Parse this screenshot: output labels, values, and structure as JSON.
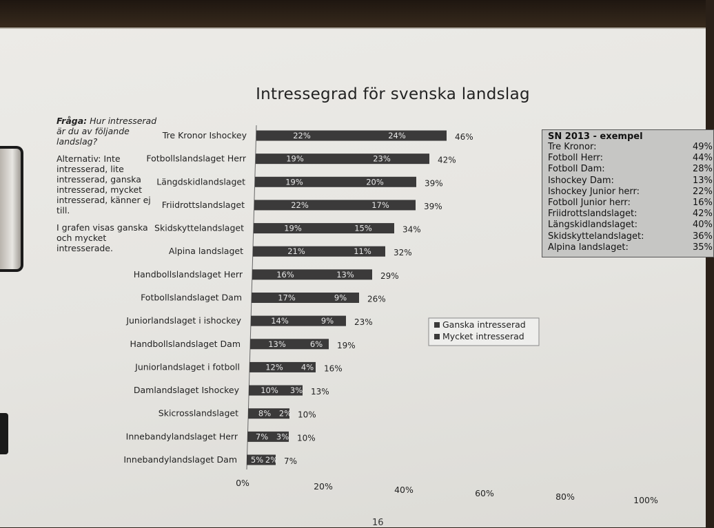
{
  "chart_data": {
    "type": "bar",
    "orientation": "horizontal",
    "stacked": true,
    "title": "Intressegrad för svenska landslag",
    "categories": [
      "Tre Kronor Ishockey",
      "Fotbollslandslaget Herr",
      "Längdskidlandslaget",
      "Friidrottslandslaget",
      "Skidskyttelandslaget",
      "Alpina landslaget",
      "Handbollslandslaget Herr",
      "Fotbollslandslaget Dam",
      "Juniorlandslaget i ishockey",
      "Handbollslandslaget Dam",
      "Juniorlandslaget i fotboll",
      "Damlandslaget Ishockey",
      "Skicrosslandslaget",
      "Innebandylandslaget Herr",
      "Innebandylandslaget Dam"
    ],
    "series": [
      {
        "name": "Ganska intresserad",
        "values": [
          22,
          19,
          19,
          22,
          19,
          21,
          16,
          17,
          14,
          13,
          12,
          10,
          8,
          7,
          5
        ]
      },
      {
        "name": "Mycket intresserad",
        "values": [
          24,
          23,
          20,
          17,
          15,
          11,
          13,
          9,
          9,
          6,
          4,
          3,
          2,
          3,
          2
        ]
      }
    ],
    "segment_labels": [
      [
        "22%",
        "24%"
      ],
      [
        "19%",
        "23%"
      ],
      [
        "19%",
        "20%"
      ],
      [
        "22%",
        "17%"
      ],
      [
        "19%",
        "15%"
      ],
      [
        "21%",
        "11%"
      ],
      [
        "16%",
        "13%"
      ],
      [
        "17%",
        "9%"
      ],
      [
        "14%",
        "9%"
      ],
      [
        "13%",
        "6%"
      ],
      [
        "12%",
        "4%"
      ],
      [
        "10%",
        "3%"
      ],
      [
        "8%",
        "2%"
      ],
      [
        "7%",
        "3%"
      ],
      [
        "5%",
        "2%"
      ]
    ],
    "totals": [
      "46%",
      "42%",
      "39%",
      "39%",
      "34%",
      "32%",
      "29%",
      "26%",
      "23%",
      "19%",
      "16%",
      "13%",
      "10%",
      "10%",
      "7%"
    ],
    "x_ticks": [
      "0%",
      "20%",
      "40%",
      "60%",
      "80%",
      "100%"
    ],
    "xlim": [
      0,
      100
    ],
    "legend_position": "right",
    "bar_color": "#3a3a3a"
  },
  "question": {
    "label": "Fråga:",
    "text": " Hur intresserad är du av följande landslag?",
    "alternatives": "Alternativ: Inte intresserad, lite intresserad, ganska intresserad, mycket intresserad, känner ej till.",
    "note": "I grafen visas ganska och mycket intresserade."
  },
  "sn_box": {
    "title": "SN 2013 - exempel",
    "rows": [
      {
        "label": "Tre Kronor:",
        "value": "49%"
      },
      {
        "label": "Fotboll Herr:",
        "value": "44%"
      },
      {
        "label": "Fotboll Dam:",
        "value": "28%"
      },
      {
        "label": "Ishockey Dam:",
        "value": "13%"
      },
      {
        "label": "Ishockey Junior herr:",
        "value": "22%"
      },
      {
        "label": "Fotboll Junior herr:",
        "value": "16%"
      },
      {
        "label": "Friidrottslandslaget:",
        "value": "42%"
      },
      {
        "label": "Längskidlandslaget:",
        "value": "40%"
      },
      {
        "label": "Skidskyttelandslaget:",
        "value": "36%"
      },
      {
        "label": "Alpina landslaget:",
        "value": "35%"
      }
    ]
  },
  "page_number": "16"
}
